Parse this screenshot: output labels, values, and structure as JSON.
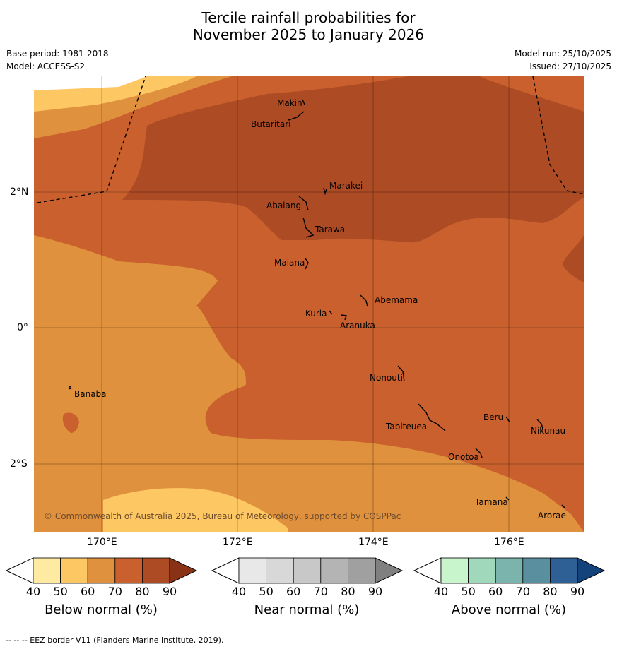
{
  "title_line1": "Tercile rainfall probabilities for",
  "title_line2": "November 2025 to January 2026",
  "base_period": "Base period: 1981-2018",
  "model": "Model: ACCESS-S2",
  "model_run": "Model run: 25/10/2025",
  "issued": "Issued: 27/10/2025",
  "copyright": "© Commonwealth of Australia 2025, Bureau of Meteorology, supported by COSPPac",
  "footer": "--  --  -- EEZ border V11 (Flanders Marine Institute, 2019).",
  "axes": {
    "lat_labels": [
      "2°N",
      "0°",
      "2°S"
    ],
    "lon_labels": [
      "170°E",
      "172°E",
      "174°E",
      "176°E"
    ]
  },
  "islands": [
    "Makin",
    "Butaritari",
    "Marakei",
    "Abaiang",
    "Tarawa",
    "Maiana",
    "Abemama",
    "Kuria",
    "Aranuka",
    "Nonouti",
    "Banaba",
    "Beru",
    "Nikunau",
    "Tabiteuea",
    "Onotoa",
    "Tamana",
    "Arorae"
  ],
  "colorbars": [
    {
      "label": "Below normal (%)",
      "ticks": [
        "40",
        "50",
        "60",
        "70",
        "80",
        "90"
      ],
      "colors": [
        "#ffffff",
        "#feeaa0",
        "#fdc864",
        "#e0913e",
        "#c9602d",
        "#ad4b24",
        "#8a3216"
      ]
    },
    {
      "label": "Near normal (%)",
      "ticks": [
        "40",
        "50",
        "60",
        "70",
        "80",
        "90"
      ],
      "colors": [
        "#ffffff",
        "#e8e8e8",
        "#d8d8d8",
        "#c8c8c8",
        "#b4b4b4",
        "#a0a0a0",
        "#808080"
      ]
    },
    {
      "label": "Above normal (%)",
      "ticks": [
        "40",
        "50",
        "60",
        "70",
        "80",
        "90"
      ],
      "colors": [
        "#ffffff",
        "#c8f5cc",
        "#a0d8bc",
        "#7ab4ac",
        "#5a8fa0",
        "#2e6096",
        "#14437c"
      ]
    }
  ]
}
